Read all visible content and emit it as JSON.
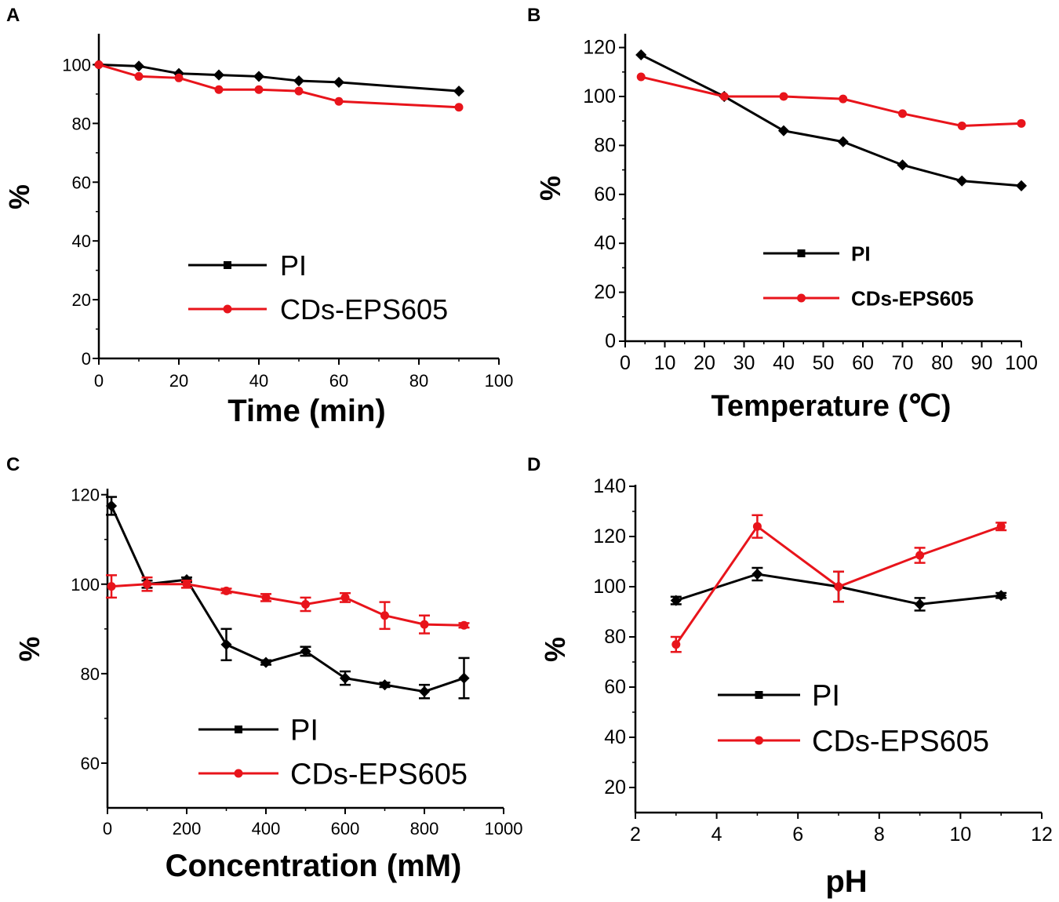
{
  "figure": {
    "panel_labels": [
      "A",
      "B",
      "C",
      "D"
    ]
  },
  "chart_data": [
    {
      "panel": "A",
      "type": "line",
      "xlabel": "Time (min)",
      "ylabel": "%",
      "xlim": [
        0,
        100
      ],
      "ylim": [
        0,
        110
      ],
      "xticks": [
        "0",
        "20",
        "40",
        "60",
        "80",
        "100"
      ],
      "yticks": [
        "0",
        "20",
        "40",
        "60",
        "80",
        "100"
      ],
      "legend_position": "lower-center",
      "series": [
        {
          "name": "PI",
          "color": "#000000",
          "marker": "square",
          "x": [
            0,
            10,
            20,
            30,
            40,
            50,
            60,
            90
          ],
          "y": [
            100,
            99.5,
            97,
            96.5,
            96,
            94.5,
            94,
            91
          ]
        },
        {
          "name": "CDs-EPS605",
          "color": "#e8141b",
          "marker": "circle",
          "x": [
            0,
            10,
            20,
            30,
            40,
            50,
            60,
            90
          ],
          "y": [
            100,
            96,
            95.5,
            91.5,
            91.5,
            91,
            87.5,
            85.5
          ]
        }
      ]
    },
    {
      "panel": "B",
      "type": "line",
      "xlabel": "Temperature (℃)",
      "ylabel": "%",
      "xlim": [
        0,
        100
      ],
      "ylim": [
        0,
        125
      ],
      "xticks": [
        "0",
        "10",
        "20",
        "30",
        "40",
        "50",
        "60",
        "70",
        "80",
        "90",
        "100"
      ],
      "yticks": [
        "0",
        "20",
        "40",
        "60",
        "80",
        "100",
        "120"
      ],
      "legend_position": "lower-center",
      "series": [
        {
          "name": "PI",
          "color": "#000000",
          "marker": "square",
          "x": [
            4,
            25,
            40,
            55,
            70,
            85,
            100
          ],
          "y": [
            117,
            100,
            86,
            81.5,
            72,
            65.5,
            63.5
          ]
        },
        {
          "name": "CDs-EPS605",
          "color": "#e8141b",
          "marker": "circle",
          "x": [
            4,
            25,
            40,
            55,
            70,
            85,
            100
          ],
          "y": [
            108,
            100,
            100,
            99,
            93,
            88,
            89
          ]
        }
      ]
    },
    {
      "panel": "C",
      "type": "line",
      "xlabel": "Concentration (mM)",
      "ylabel": "%",
      "xlim": [
        0,
        1000
      ],
      "ylim": [
        50,
        121
      ],
      "xticks": [
        "0",
        "200",
        "400",
        "600",
        "800",
        "1000"
      ],
      "yticks": [
        "60",
        "80",
        "100",
        "120"
      ],
      "legend_position": "lower-center",
      "series": [
        {
          "name": "PI",
          "color": "#000000",
          "marker": "square",
          "x": [
            10,
            100,
            200,
            300,
            400,
            500,
            600,
            700,
            800,
            900
          ],
          "y": [
            117.5,
            100,
            101,
            86.5,
            82.5,
            85,
            79,
            77.5,
            76,
            79
          ],
          "err": [
            2,
            0.8,
            0.5,
            3.5,
            0.5,
            1,
            1.5,
            0.5,
            1.5,
            4.5
          ]
        },
        {
          "name": "CDs-EPS605",
          "color": "#e8141b",
          "marker": "circle",
          "x": [
            10,
            100,
            200,
            300,
            400,
            500,
            600,
            700,
            800,
            900
          ],
          "y": [
            99.5,
            100,
            100,
            98.5,
            97,
            95.5,
            97,
            93,
            91,
            90.8
          ],
          "err": [
            2.5,
            1.5,
            0.8,
            0.5,
            0.8,
            1.5,
            1,
            3,
            2,
            0.5
          ]
        }
      ]
    },
    {
      "panel": "D",
      "type": "line",
      "xlabel": "pH",
      "ylabel": "%",
      "xlim": [
        2,
        12
      ],
      "ylim": [
        10,
        140
      ],
      "xticks": [
        "2",
        "4",
        "6",
        "8",
        "10",
        "12"
      ],
      "yticks": [
        "20",
        "40",
        "60",
        "80",
        "100",
        "120",
        "140"
      ],
      "legend_position": "lower-center",
      "series": [
        {
          "name": "PI",
          "color": "#000000",
          "marker": "square",
          "x": [
            3,
            5,
            7,
            9,
            11
          ],
          "y": [
            94.5,
            105,
            100,
            93,
            96.5
          ],
          "err": [
            1.5,
            2.5,
            6,
            2.5,
            1
          ]
        },
        {
          "name": "CDs-EPS605",
          "color": "#e8141b",
          "marker": "circle",
          "x": [
            3,
            5,
            7,
            9,
            11
          ],
          "y": [
            77,
            124,
            100,
            112.5,
            124
          ],
          "err": [
            3,
            4.5,
            6,
            3,
            1.5
          ]
        }
      ]
    }
  ]
}
